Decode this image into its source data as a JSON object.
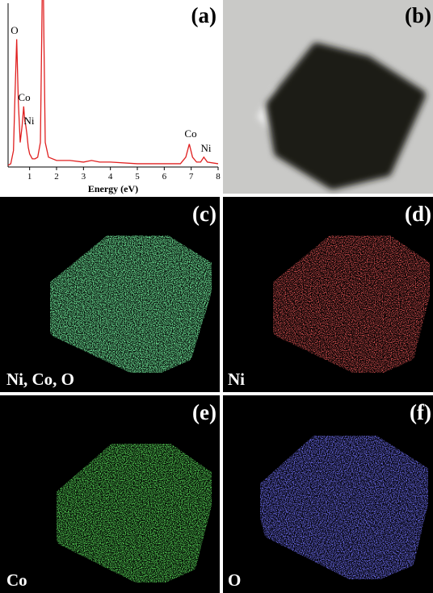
{
  "panels": [
    {
      "label": "(a)"
    },
    {
      "label": "(b)"
    },
    {
      "label": "(c)",
      "element": "Ni, Co, O"
    },
    {
      "label": "(d)",
      "element": "Ni"
    },
    {
      "label": "(e)",
      "element": "Co"
    },
    {
      "label": "(f)",
      "element": "O"
    }
  ],
  "chart_data": {
    "type": "line",
    "x_label": "Energy (eV)",
    "x": [
      0.2,
      0.3,
      0.4,
      0.45,
      0.52,
      0.58,
      0.65,
      0.72,
      0.78,
      0.82,
      0.86,
      0.9,
      0.95,
      1.0,
      1.1,
      1.2,
      1.3,
      1.4,
      1.45,
      1.49,
      1.53,
      1.58,
      1.7,
      2.0,
      2.5,
      3.0,
      3.3,
      3.6,
      4.0,
      5.0,
      6.0,
      6.6,
      6.8,
      6.93,
      7.05,
      7.2,
      7.35,
      7.47,
      7.6,
      8.0
    ],
    "series": [
      {
        "color": "#e02020",
        "values": [
          1,
          2,
          10,
          40,
          78,
          40,
          15,
          25,
          37,
          28,
          25,
          20,
          12,
          8,
          5,
          5,
          6,
          15,
          80,
          140,
          80,
          15,
          6,
          4,
          4,
          3,
          4,
          3,
          3,
          2,
          2,
          2,
          6,
          14,
          6,
          3,
          3,
          6,
          3,
          2
        ]
      }
    ],
    "xlim": [
      0.2,
      8
    ],
    "xticks": [
      1,
      2,
      3,
      4,
      5,
      6,
      7,
      8
    ],
    "ylim": [
      0,
      100
    ],
    "annotations": [
      "O",
      "Co",
      "Ni",
      "Co",
      "Ni"
    ]
  }
}
